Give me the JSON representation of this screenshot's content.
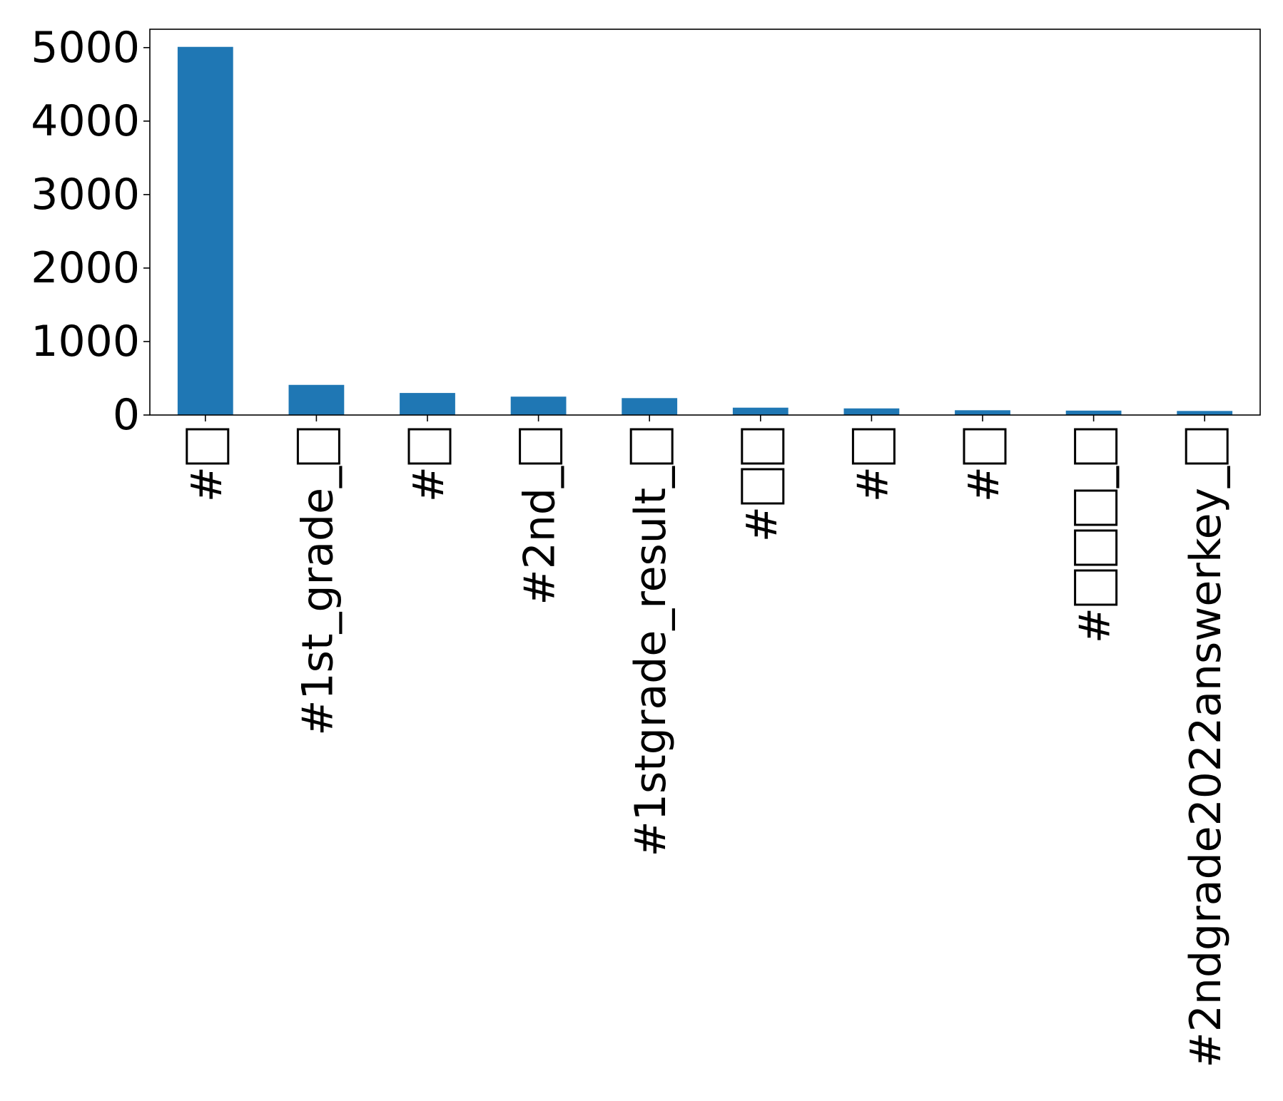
{
  "chart_data": {
    "type": "bar",
    "title": "",
    "xlabel": "",
    "ylabel": "",
    "categories": [
      "#□",
      "#1st_grade_□",
      "#□",
      "#2nd_□",
      "#1stgrade_result_□",
      "#□□",
      "#□",
      "#□",
      "#□□□_□",
      "#2ndgrade2022answerkey_□"
    ],
    "values": [
      5010,
      410,
      300,
      250,
      230,
      100,
      90,
      65,
      60,
      55
    ],
    "ylim": [
      0,
      5250
    ],
    "yticks": [
      0,
      1000,
      2000,
      3000,
      4000,
      5000
    ],
    "ytick_labels": [
      "0",
      "1000",
      "2000",
      "3000",
      "4000",
      "5000"
    ],
    "grid": false,
    "legend": "none",
    "bar_color": "#1f77b4"
  }
}
